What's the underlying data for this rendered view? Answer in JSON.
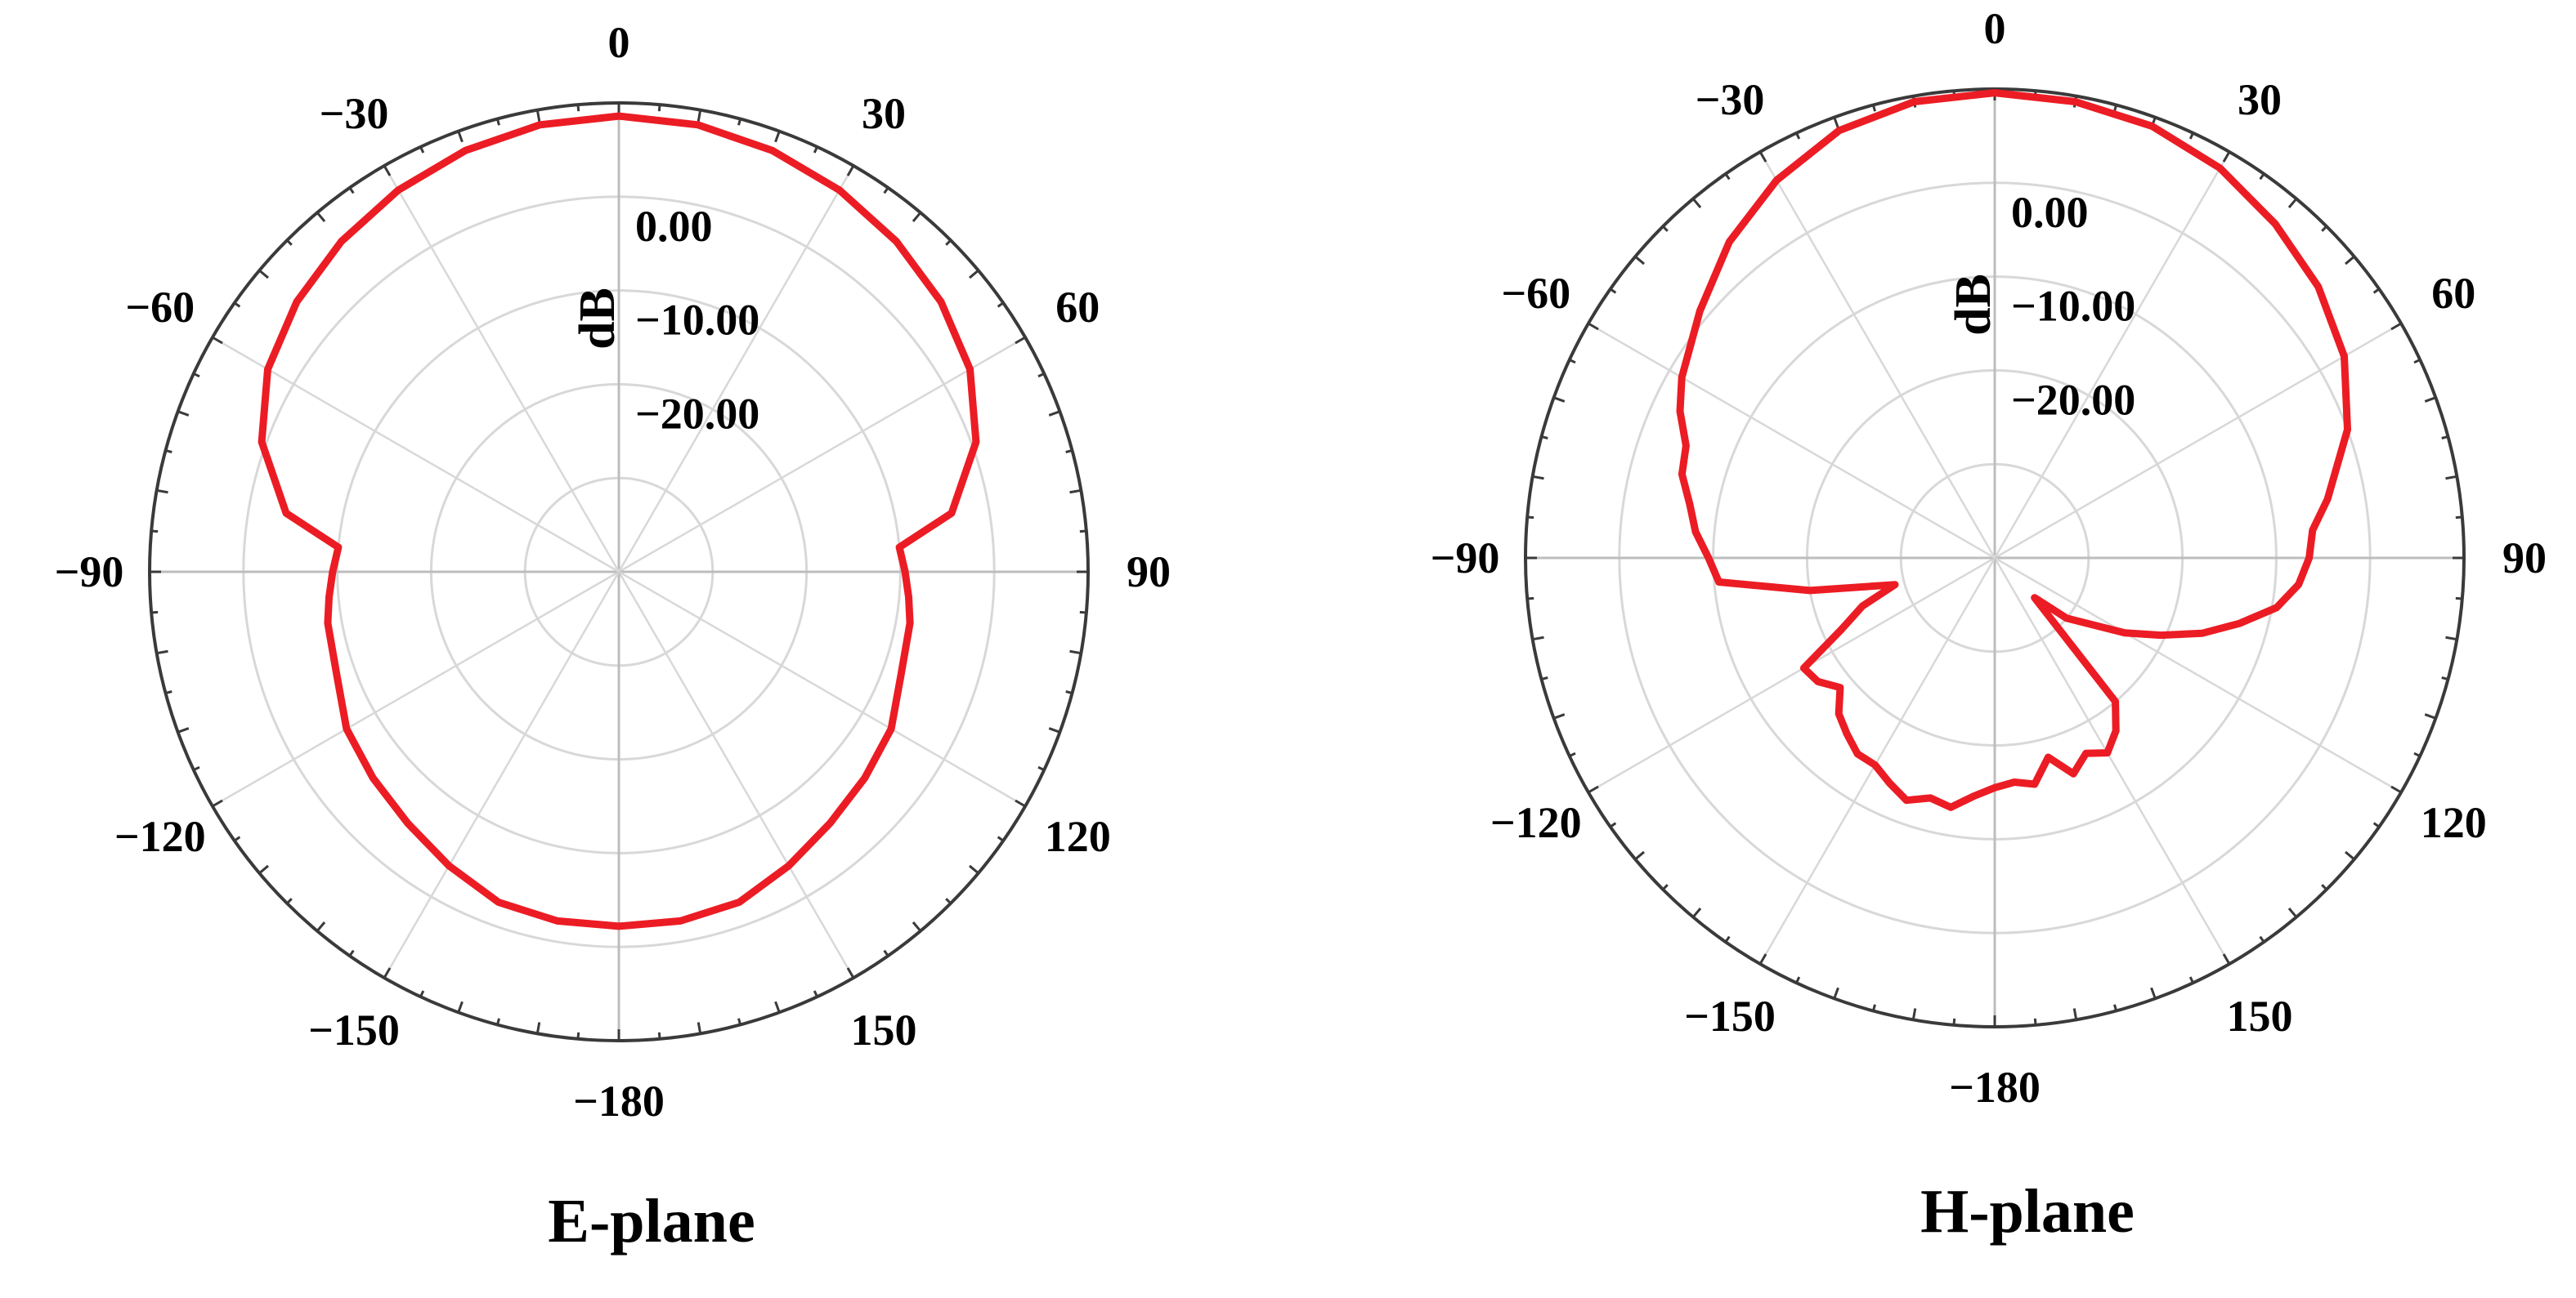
{
  "chart_data": [
    {
      "type": "polar",
      "caption": "E-plane",
      "unit": "dB",
      "angle_ticks": [
        "0",
        "30",
        "60",
        "90",
        "120",
        "150",
        "−180",
        "−150",
        "−120",
        "−90",
        "−60",
        "−30"
      ],
      "radial_ticks": [
        "0.00",
        "−10.00",
        "−20.00"
      ],
      "radial_range": [
        -40,
        10
      ],
      "theta": [
        0,
        10,
        20,
        30,
        40,
        50,
        60,
        70,
        80,
        85,
        90,
        95,
        100,
        110,
        120,
        130,
        140,
        150,
        160,
        170,
        180,
        190,
        200,
        210,
        220,
        230,
        240,
        250,
        260,
        265,
        270,
        275,
        280,
        290,
        300,
        310,
        320,
        330,
        340,
        350
      ],
      "gain_db": [
        8.6,
        8.4,
        7.8,
        7.0,
        6.0,
        4.8,
        3.2,
        0.5,
        -4.0,
        -10.0,
        -9.5,
        -9.0,
        -8.5,
        -8.0,
        -6.5,
        -5.8,
        -5.0,
        -3.8,
        -2.5,
        -2.2,
        -2.2,
        -2.2,
        -2.5,
        -3.8,
        -5.0,
        -5.8,
        -6.5,
        -8.0,
        -8.5,
        -9.0,
        -9.5,
        -10.0,
        -4.0,
        0.5,
        3.2,
        4.8,
        6.0,
        7.0,
        7.8,
        8.4
      ],
      "line_color": "#ec1c24"
    },
    {
      "type": "polar",
      "caption": "H-plane",
      "unit": "dB",
      "angle_ticks": [
        "0",
        "30",
        "60",
        "90",
        "120",
        "150",
        "−180",
        "−150",
        "−120",
        "−90",
        "−60",
        "−30"
      ],
      "radial_ticks": [
        "0.00",
        "−10.00",
        "−20.00"
      ],
      "radial_range": [
        -40,
        10
      ],
      "theta": [
        0,
        10,
        20,
        30,
        40,
        50,
        60,
        70,
        80,
        85,
        90,
        95,
        100,
        105,
        110,
        115,
        120,
        130,
        135,
        140,
        145,
        150,
        155,
        160,
        165,
        170,
        175,
        180,
        185,
        190,
        195,
        200,
        205,
        210,
        215,
        220,
        225,
        230,
        235,
        240,
        245,
        250,
        255,
        260,
        265,
        270,
        275,
        280,
        285,
        290,
        295,
        300,
        310,
        320,
        330,
        340,
        350
      ],
      "gain_db": [
        9.6,
        9.4,
        9.0,
        8.0,
        6.5,
        5.0,
        3.0,
        0.0,
        -4.0,
        -6.0,
        -6.5,
        -7.5,
        -9.5,
        -13.0,
        -16.5,
        -20.5,
        -24.0,
        -30.0,
        -34.0,
        -20.0,
        -17.5,
        -16.0,
        -17.0,
        -15.5,
        -18.0,
        -15.5,
        -16.0,
        -15.5,
        -14.5,
        -13.0,
        -13.5,
        -12.5,
        -13.5,
        -14.5,
        -14.5,
        -15.5,
        -16.5,
        -18.5,
        -17.0,
        -16.5,
        -22.0,
        -25.0,
        -29.0,
        -20.0,
        -10.5,
        -9.5,
        -8.0,
        -7.0,
        -5.5,
        -5.0,
        -3.0,
        -1.5,
        1.0,
        4.0,
        6.5,
        8.5,
        9.4
      ],
      "line_color": "#ec1c24"
    }
  ]
}
